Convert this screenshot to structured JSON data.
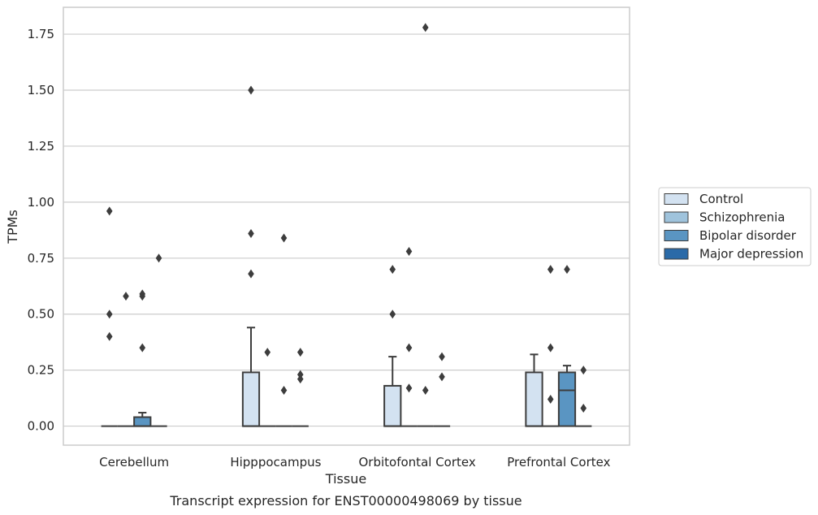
{
  "chart_data": {
    "type": "box",
    "caption": "Transcript expression for ENST00000498069 by tissue",
    "xlabel": "Tissue",
    "ylabel": "TPMs",
    "ylim": [
      -0.085,
      1.87
    ],
    "yticks": [
      0.0,
      0.25,
      0.5,
      0.75,
      1.0,
      1.25,
      1.5,
      1.75
    ],
    "ytick_labels": [
      "0.00",
      "0.25",
      "0.50",
      "0.75",
      "1.00",
      "1.25",
      "1.50",
      "1.75"
    ],
    "grid": "horizontal",
    "legend_position": "right",
    "categories": [
      "Cerebellum",
      "Hipppocampus",
      "Orbitofontal Cortex",
      "Prefrontal Cortex"
    ],
    "series": [
      {
        "name": "Control",
        "color": "#d3e2f1",
        "boxes": [
          {
            "q1": 0,
            "median": 0,
            "q3": 0,
            "whisker_low": 0,
            "whisker_high": 0,
            "outliers": [
              0.96,
              0.5,
              0.4
            ]
          },
          {
            "q1": 0,
            "median": 0,
            "q3": 0.24,
            "whisker_low": 0,
            "whisker_high": 0.44,
            "outliers": [
              1.5,
              0.86,
              0.68
            ]
          },
          {
            "q1": 0,
            "median": 0,
            "q3": 0.18,
            "whisker_low": 0,
            "whisker_high": 0.31,
            "outliers": [
              0.7,
              0.5
            ]
          },
          {
            "q1": 0,
            "median": 0,
            "q3": 0.24,
            "whisker_low": 0,
            "whisker_high": 0.32,
            "outliers": []
          }
        ]
      },
      {
        "name": "Schizophrenia",
        "color": "#9fc3dc",
        "boxes": [
          {
            "q1": 0,
            "median": 0,
            "q3": 0,
            "whisker_low": 0,
            "whisker_high": 0,
            "outliers": [
              0.58
            ]
          },
          {
            "q1": 0,
            "median": 0,
            "q3": 0,
            "whisker_low": 0,
            "whisker_high": 0,
            "outliers": [
              0.33
            ]
          },
          {
            "q1": 0,
            "median": 0,
            "q3": 0,
            "whisker_low": 0,
            "whisker_high": 0,
            "outliers": [
              0.78,
              0.35,
              0.17
            ]
          },
          {
            "q1": 0,
            "median": 0,
            "q3": 0,
            "whisker_low": 0,
            "whisker_high": 0,
            "outliers": [
              0.7,
              0.35,
              0.12
            ]
          }
        ]
      },
      {
        "name": "Bipolar disorder",
        "color": "#5a95c2",
        "boxes": [
          {
            "q1": 0,
            "median": 0,
            "q3": 0.04,
            "whisker_low": 0,
            "whisker_high": 0.06,
            "outliers": [
              0.59,
              0.58,
              0.35
            ]
          },
          {
            "q1": 0,
            "median": 0,
            "q3": 0,
            "whisker_low": 0,
            "whisker_high": 0,
            "outliers": [
              0.84,
              0.16
            ]
          },
          {
            "q1": 0,
            "median": 0,
            "q3": 0,
            "whisker_low": 0,
            "whisker_high": 0,
            "outliers": [
              1.78,
              0.16
            ]
          },
          {
            "q1": 0,
            "median": 0.16,
            "q3": 0.24,
            "whisker_low": 0,
            "whisker_high": 0.27,
            "outliers": [
              0.7
            ]
          }
        ]
      },
      {
        "name": "Major depression",
        "color": "#2a6aa8",
        "boxes": [
          {
            "q1": 0,
            "median": 0,
            "q3": 0,
            "whisker_low": 0,
            "whisker_high": 0,
            "outliers": [
              0.75
            ]
          },
          {
            "q1": 0,
            "median": 0,
            "q3": 0,
            "whisker_low": 0,
            "whisker_high": 0,
            "outliers": [
              0.33,
              0.23,
              0.21
            ]
          },
          {
            "q1": 0,
            "median": 0,
            "q3": 0,
            "whisker_low": 0,
            "whisker_high": 0,
            "outliers": [
              0.31,
              0.22
            ]
          },
          {
            "q1": 0,
            "median": 0,
            "q3": 0,
            "whisker_low": 0,
            "whisker_high": 0,
            "outliers": [
              0.25,
              0.08
            ]
          }
        ]
      }
    ]
  }
}
